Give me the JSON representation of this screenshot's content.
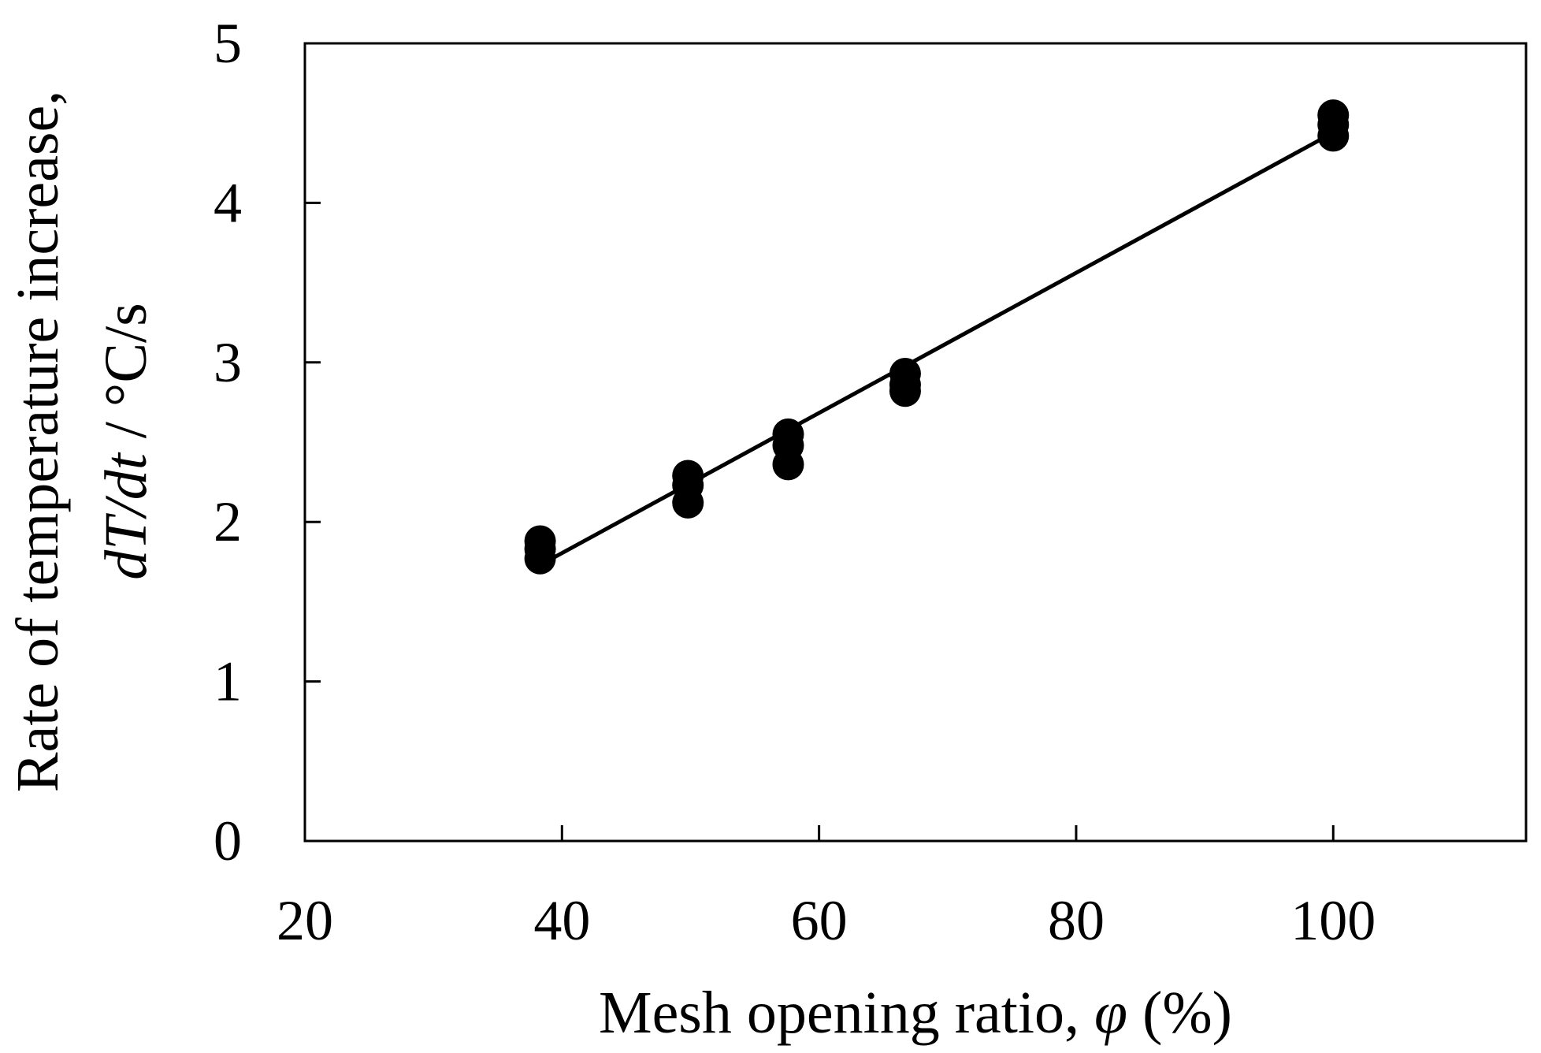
{
  "chart_data": {
    "type": "scatter",
    "title": "",
    "xlabel": {
      "prefix": "Mesh opening ratio, ",
      "symbol": "φ",
      "suffix": " (%)"
    },
    "ylabel": {
      "line1": "Rate of temperature increase,",
      "line2_italic": "dT/dt",
      "line2_rest": " / °C/s"
    },
    "xlim": [
      20,
      115
    ],
    "ylim": [
      0,
      5
    ],
    "x_ticks": [
      20,
      40,
      60,
      80,
      100
    ],
    "y_ticks": [
      0,
      1,
      2,
      3,
      4,
      5
    ],
    "grid": false,
    "legend": "none",
    "colors": {
      "marker": "#000000",
      "line": "#000000",
      "axes": "#000000"
    },
    "series": [
      {
        "type": "scatter",
        "points": [
          {
            "x": 38.3,
            "y": 1.77
          },
          {
            "x": 38.3,
            "y": 1.83
          },
          {
            "x": 38.3,
            "y": 1.88
          },
          {
            "x": 49.8,
            "y": 2.12
          },
          {
            "x": 49.8,
            "y": 2.23
          },
          {
            "x": 49.8,
            "y": 2.29
          },
          {
            "x": 57.6,
            "y": 2.36
          },
          {
            "x": 57.6,
            "y": 2.48
          },
          {
            "x": 57.6,
            "y": 2.55
          },
          {
            "x": 66.7,
            "y": 2.82
          },
          {
            "x": 66.7,
            "y": 2.86
          },
          {
            "x": 66.7,
            "y": 2.93
          },
          {
            "x": 100,
            "y": 4.42
          },
          {
            "x": 100,
            "y": 4.49
          },
          {
            "x": 100,
            "y": 4.55
          }
        ]
      },
      {
        "type": "line",
        "points": [
          {
            "x": 38.3,
            "y": 1.73
          },
          {
            "x": 100,
            "y": 4.44
          }
        ]
      }
    ]
  }
}
